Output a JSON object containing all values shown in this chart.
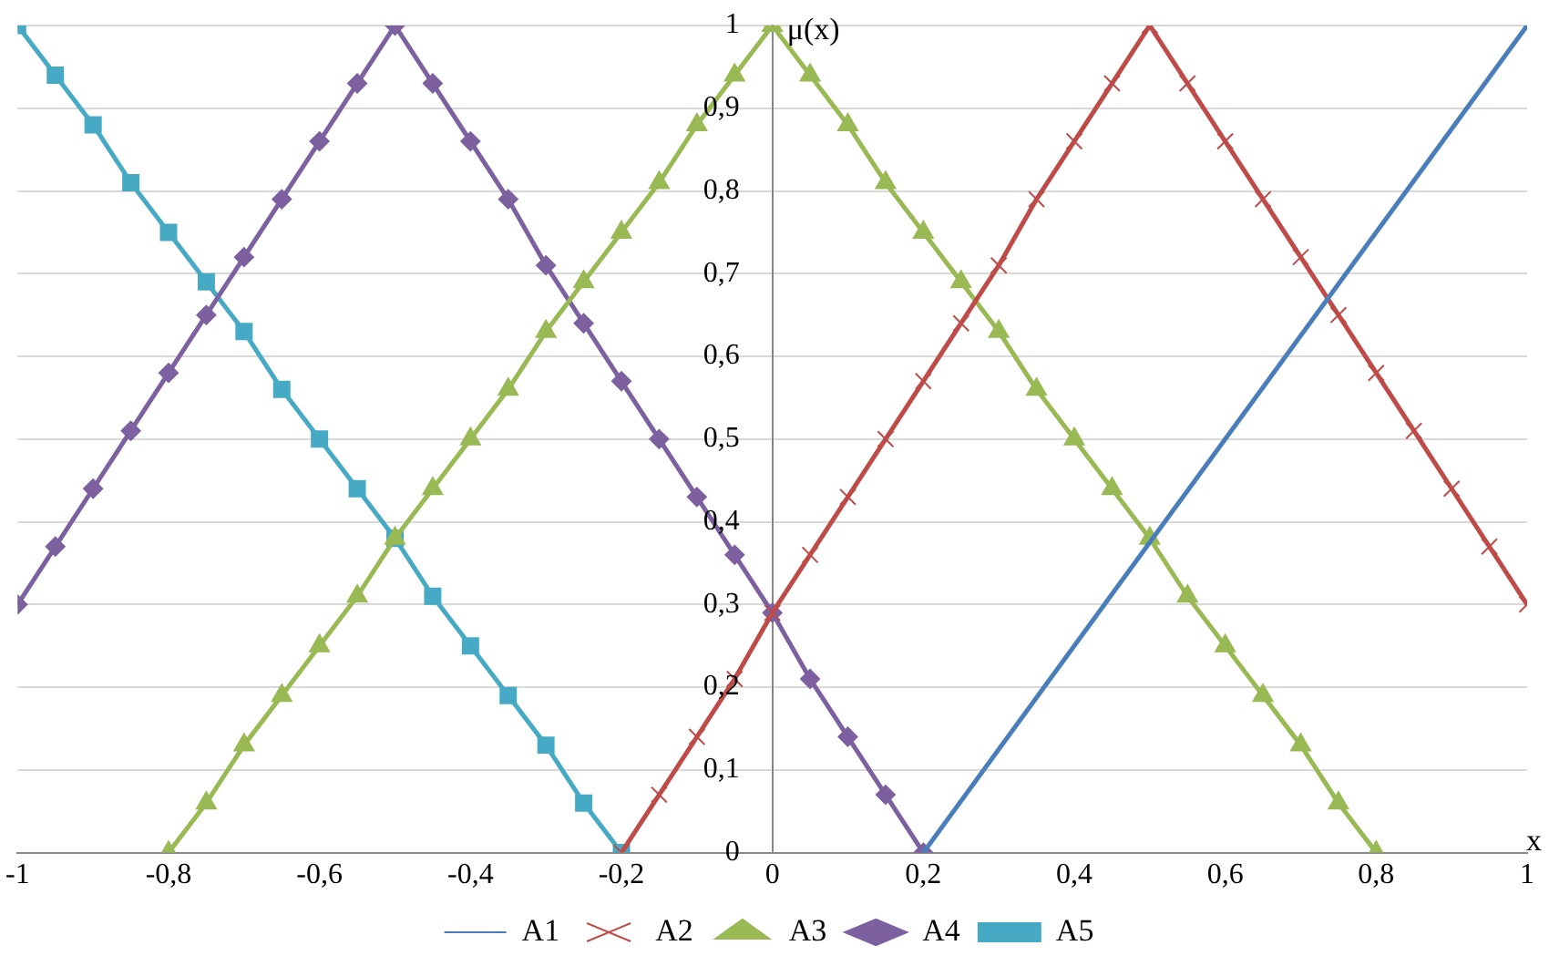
{
  "chart_data": {
    "type": "line",
    "xlabel": "x",
    "ylabel": "μ(x)",
    "xlim": [
      -1,
      1
    ],
    "ylim": [
      0,
      1
    ],
    "xticks": [
      -1,
      {
        "value": -0.8,
        "label": "-0,8"
      },
      {
        "value": -0.6,
        "label": "-0,6"
      },
      {
        "value": -0.4,
        "label": "-0,4"
      },
      {
        "value": -0.2,
        "label": "-0,2"
      },
      0,
      {
        "value": 0.2,
        "label": "0,2"
      },
      {
        "value": 0.4,
        "label": "0,4"
      },
      {
        "value": 0.6,
        "label": "0,6"
      },
      {
        "value": 0.8,
        "label": "0,8"
      },
      1
    ],
    "yticks": [
      0,
      {
        "value": 0.1,
        "label": "0,1"
      },
      {
        "value": 0.2,
        "label": "0,2"
      },
      {
        "value": 0.3,
        "label": "0,3"
      },
      {
        "value": 0.4,
        "label": "0,4"
      },
      {
        "value": 0.5,
        "label": "0,5"
      },
      {
        "value": 0.6,
        "label": "0,6"
      },
      {
        "value": 0.7,
        "label": "0,7"
      },
      {
        "value": 0.8,
        "label": "0,8"
      },
      {
        "value": 0.9,
        "label": "0,9"
      },
      1
    ],
    "grid": "y",
    "legend": "bottom",
    "line_style": "solid",
    "series": [
      {
        "name": "A1",
        "color": "#4a7ebb",
        "marker": "none",
        "x": [
          0.2,
          1
        ],
        "values": [
          0,
          1
        ]
      },
      {
        "name": "A2",
        "color": "#be4b48",
        "marker": "cross",
        "x": [
          -0.2,
          -0.15,
          -0.1,
          -0.05,
          0,
          0.05,
          0.1,
          0.15,
          0.2,
          0.25,
          0.3,
          0.35,
          0.4,
          0.45,
          0.5,
          0.55,
          0.6,
          0.65,
          0.7,
          0.75,
          0.8,
          0.85,
          0.9,
          0.95,
          1
        ],
        "values": [
          0,
          0.07,
          0.14,
          0.21,
          0.29,
          0.36,
          0.43,
          0.5,
          0.57,
          0.64,
          0.71,
          0.79,
          0.86,
          0.93,
          1,
          0.93,
          0.86,
          0.79,
          0.72,
          0.65,
          0.58,
          0.51,
          0.44,
          0.37,
          0.3
        ]
      },
      {
        "name": "A3",
        "color": "#98b954",
        "marker": "triangle",
        "x": [
          -0.8,
          -0.75,
          -0.7,
          -0.65,
          -0.6,
          -0.55,
          -0.5,
          -0.45,
          -0.4,
          -0.35,
          -0.3,
          -0.25,
          -0.2,
          -0.15,
          -0.1,
          -0.05,
          0,
          0.05,
          0.1,
          0.15,
          0.2,
          0.25,
          0.3,
          0.35,
          0.4,
          0.45,
          0.5,
          0.55,
          0.6,
          0.65,
          0.7,
          0.75,
          0.8
        ],
        "values": [
          0,
          0.06,
          0.13,
          0.19,
          0.25,
          0.31,
          0.38,
          0.44,
          0.5,
          0.56,
          0.63,
          0.69,
          0.75,
          0.81,
          0.88,
          0.94,
          1,
          0.94,
          0.88,
          0.81,
          0.75,
          0.69,
          0.63,
          0.56,
          0.5,
          0.44,
          0.38,
          0.31,
          0.25,
          0.19,
          0.13,
          0.06,
          0
        ]
      },
      {
        "name": "A4",
        "color": "#7d60a0",
        "marker": "diamond",
        "x": [
          -1,
          -0.95,
          -0.9,
          -0.85,
          -0.8,
          -0.75,
          -0.7,
          -0.65,
          -0.6,
          -0.55,
          -0.5,
          -0.45,
          -0.4,
          -0.35,
          -0.3,
          -0.25,
          -0.2,
          -0.15,
          -0.1,
          -0.05,
          0,
          0.05,
          0.1,
          0.15,
          0.2
        ],
        "values": [
          0.3,
          0.37,
          0.44,
          0.51,
          0.58,
          0.65,
          0.72,
          0.79,
          0.86,
          0.93,
          1,
          0.93,
          0.86,
          0.79,
          0.71,
          0.64,
          0.57,
          0.5,
          0.43,
          0.36,
          0.29,
          0.21,
          0.14,
          0.07,
          0
        ]
      },
      {
        "name": "A5",
        "color": "#46aac5",
        "marker": "square",
        "x": [
          -1,
          -0.95,
          -0.9,
          -0.85,
          -0.8,
          -0.75,
          -0.7,
          -0.65,
          -0.6,
          -0.55,
          -0.5,
          -0.45,
          -0.4,
          -0.35,
          -0.3,
          -0.25,
          -0.2
        ],
        "values": [
          1,
          0.94,
          0.88,
          0.81,
          0.75,
          0.69,
          0.63,
          0.56,
          0.5,
          0.44,
          0.38,
          0.31,
          0.25,
          0.19,
          0.13,
          0.06,
          0
        ]
      }
    ]
  }
}
